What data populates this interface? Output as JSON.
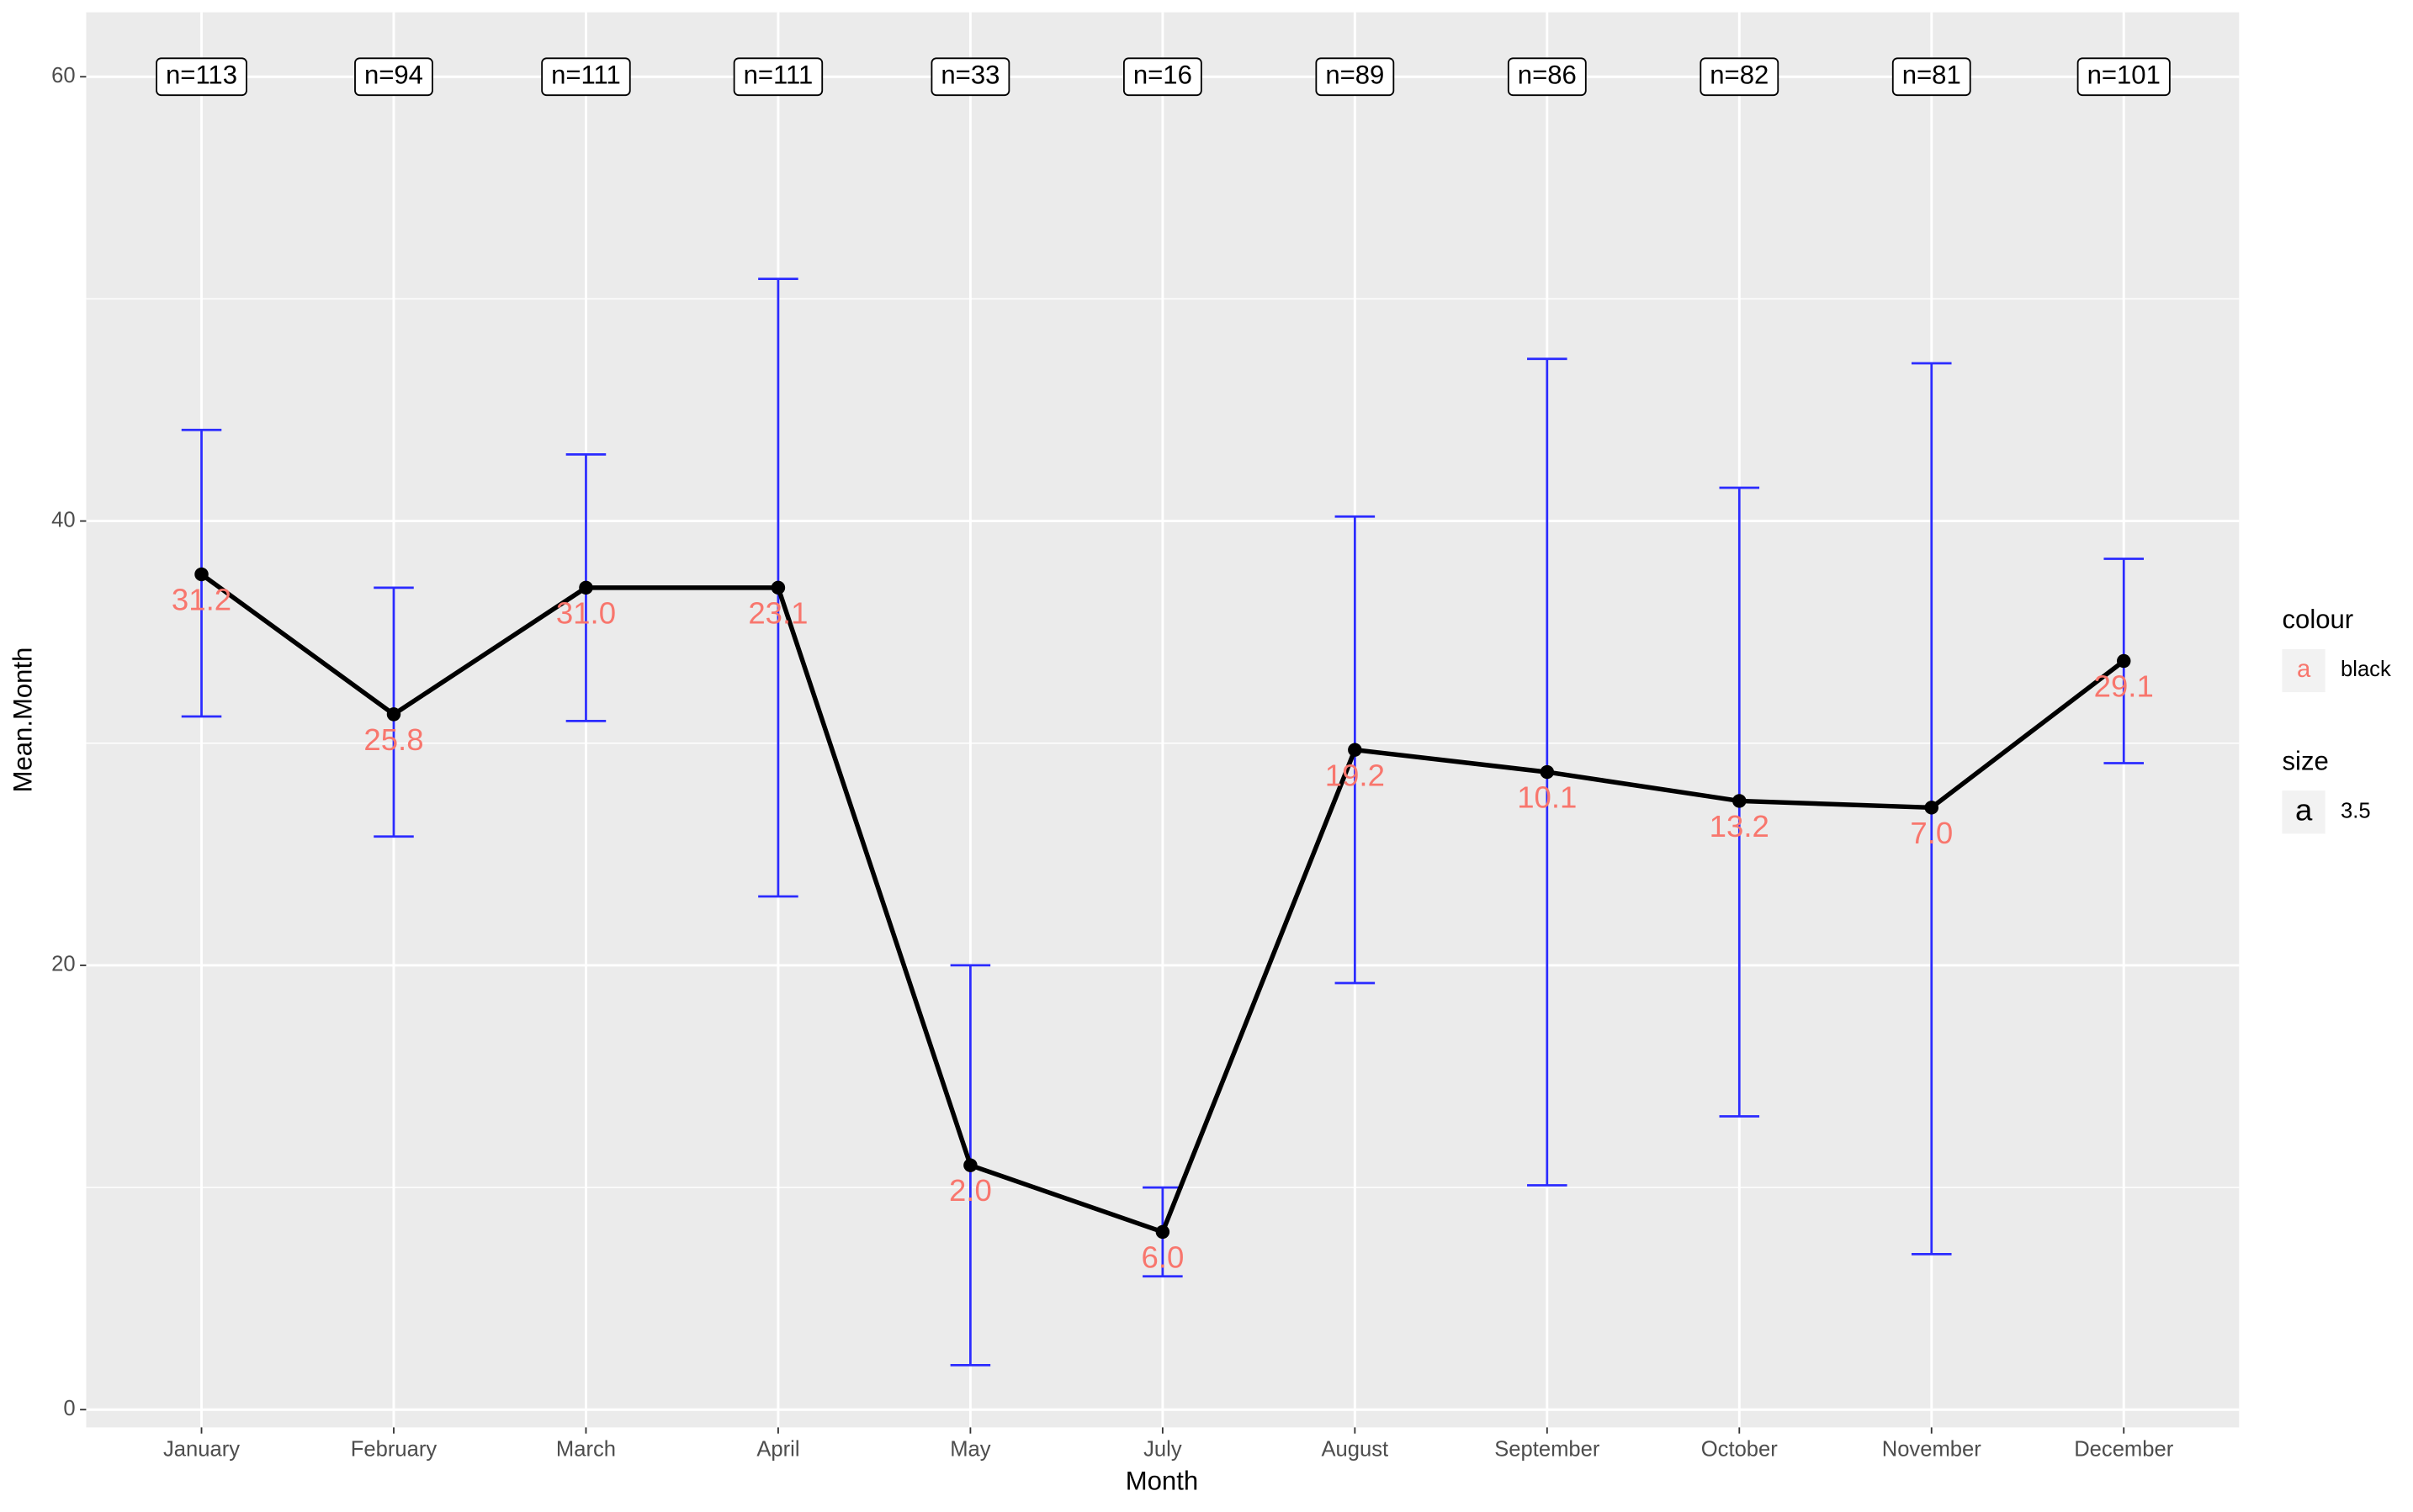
{
  "chart_data": {
    "type": "line",
    "x_label": "Month",
    "y_label": "Mean.Month",
    "categories": [
      "January",
      "February",
      "March",
      "April",
      "May",
      "July",
      "August",
      "September",
      "October",
      "November",
      "December"
    ],
    "series": [
      {
        "name": "Mean.Month",
        "color": "#000000",
        "values": [
          37.6,
          31.3,
          37.0,
          37.0,
          11.0,
          8.0,
          29.7,
          28.7,
          27.4,
          27.1,
          33.7
        ],
        "upper": [
          44.1,
          37.0,
          43.0,
          50.9,
          20.0,
          10.0,
          40.2,
          47.3,
          41.5,
          47.1,
          38.3
        ],
        "lower": [
          31.2,
          25.8,
          31.0,
          23.1,
          2.0,
          6.0,
          19.2,
          10.1,
          13.2,
          7.0,
          29.1
        ],
        "lower_labels": [
          "31.2",
          "25.8",
          "31.0",
          "23.1",
          "2.0",
          "6.0",
          "19.2",
          "10.1",
          "13.2",
          "7.0",
          "29.1"
        ],
        "error_color": "#2b2bff",
        "label_color": "#f8766d"
      }
    ],
    "n_labels": [
      "n=113",
      "n=94",
      "n=111",
      "n=111",
      "n=33",
      "n=16",
      "n=89",
      "n=86",
      "n=82",
      "n=81",
      "n=101"
    ],
    "n_label_y": 60,
    "ylim": [
      -0.8,
      62.9
    ],
    "yticks": [
      0,
      20,
      40,
      60
    ],
    "yminor": [
      10,
      30,
      50
    ],
    "grid": true,
    "legend": [
      {
        "title": "colour",
        "key": "a",
        "label": "black"
      },
      {
        "title": "size",
        "key": "a",
        "label": "3.5"
      }
    ]
  }
}
